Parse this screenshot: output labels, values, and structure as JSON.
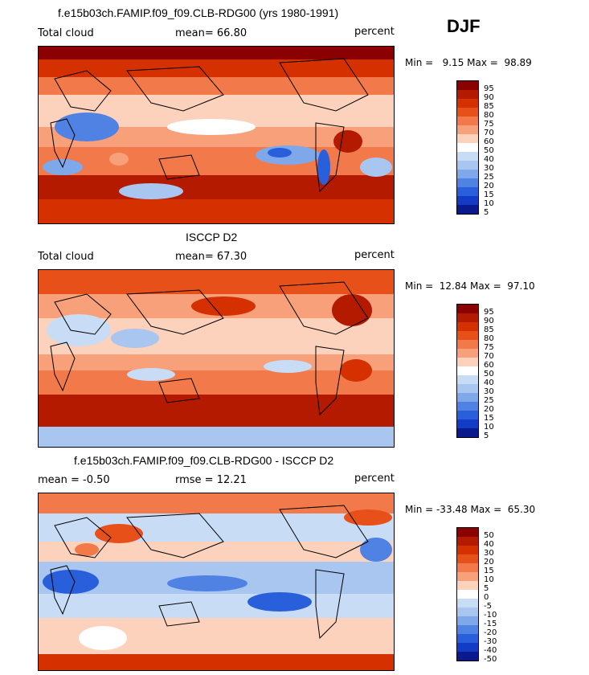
{
  "season": "DJF",
  "panels": [
    {
      "title": "f.e15b03ch.FAMIP.f09_f09.CLB-RDG00 (yrs 1980-1991)",
      "left_label": "Total cloud",
      "middle_label": "mean=   66.80",
      "units": "percent",
      "minmax": "Min =   9.15 Max =  98.89",
      "colorbar_labels": [
        "95",
        "90",
        "85",
        "80",
        "75",
        "70",
        "60",
        "50",
        "40",
        "30",
        "25",
        "20",
        "15",
        "10",
        "5"
      ],
      "colorbar_colors": [
        "#8b0000",
        "#b31a00",
        "#d43000",
        "#e8501a",
        "#f27a4a",
        "#f8a07a",
        "#fcd2bd",
        "#ffffff",
        "#c8dcf6",
        "#a8c6ef",
        "#7fa8ea",
        "#4f82e2",
        "#2a5fdc",
        "#123cc6",
        "#0a1a8c"
      ]
    },
    {
      "title": "ISCCP D2",
      "left_label": "Total cloud",
      "middle_label": "mean=   67.30",
      "units": "percent",
      "minmax": "Min =  12.84 Max =  97.10",
      "colorbar_labels": [
        "95",
        "90",
        "85",
        "80",
        "75",
        "70",
        "60",
        "50",
        "40",
        "30",
        "25",
        "20",
        "15",
        "10",
        "5"
      ],
      "colorbar_colors": [
        "#8b0000",
        "#b31a00",
        "#d43000",
        "#e8501a",
        "#f27a4a",
        "#f8a07a",
        "#fcd2bd",
        "#ffffff",
        "#c8dcf6",
        "#a8c6ef",
        "#7fa8ea",
        "#4f82e2",
        "#2a5fdc",
        "#123cc6",
        "#0a1a8c"
      ]
    },
    {
      "title": "f.e15b03ch.FAMIP.f09_f09.CLB-RDG00 - ISCCP D2",
      "left_label": "mean =   -0.50",
      "middle_label": "rmse =   12.21",
      "units": "percent",
      "minmax": "Min = -33.48 Max =  65.30",
      "colorbar_labels": [
        "50",
        "40",
        "30",
        "20",
        "15",
        "10",
        "5",
        "0",
        "-5",
        "-10",
        "-15",
        "-20",
        "-30",
        "-40",
        "-50"
      ],
      "colorbar_colors": [
        "#8b0000",
        "#b31a00",
        "#d43000",
        "#e8501a",
        "#f27a4a",
        "#f8a07a",
        "#fcd2bd",
        "#ffffff",
        "#c8dcf6",
        "#a8c6ef",
        "#7fa8ea",
        "#4f82e2",
        "#2a5fdc",
        "#123cc6",
        "#0a1a8c"
      ]
    }
  ]
}
